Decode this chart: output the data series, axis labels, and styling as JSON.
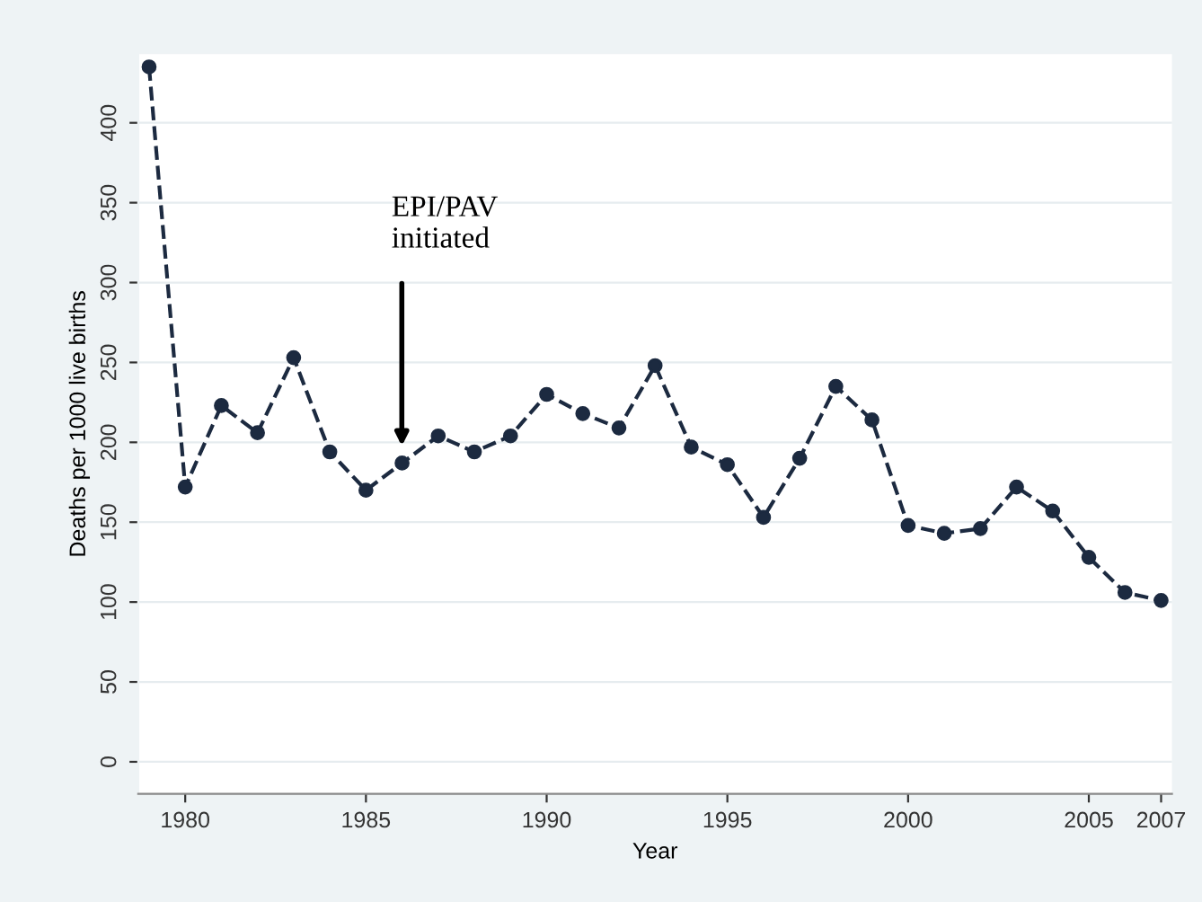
{
  "chart_data": {
    "type": "line",
    "xlabel": "Year",
    "ylabel": "Deaths per 1000 live births",
    "x": [
      1979,
      1980,
      1981,
      1982,
      1983,
      1984,
      1985,
      1986,
      1987,
      1988,
      1989,
      1990,
      1991,
      1992,
      1993,
      1994,
      1995,
      1996,
      1997,
      1998,
      1999,
      2000,
      2001,
      2002,
      2003,
      2004,
      2005,
      2006,
      2007
    ],
    "series": [
      {
        "color": "#1c2a40",
        "values": [
          435,
          172,
          223,
          206,
          253,
          194,
          170,
          187,
          204,
          194,
          204,
          230,
          218,
          209,
          248,
          197,
          186,
          153,
          190,
          235,
          214,
          148,
          143,
          146,
          172,
          157,
          128,
          106,
          101
        ]
      }
    ],
    "xlim": [
      1978.7,
      2007.3
    ],
    "xticks": [
      1980,
      1985,
      1990,
      1995,
      2000,
      2005,
      2007
    ],
    "ylim": [
      -20,
      443
    ],
    "yticks": [
      0,
      50,
      100,
      150,
      200,
      250,
      300,
      350,
      400
    ],
    "grid": "y",
    "marker": "circle",
    "line_style": "dashed",
    "legend": false,
    "annotations": [
      "EPI/PAV\ninitiated"
    ]
  }
}
